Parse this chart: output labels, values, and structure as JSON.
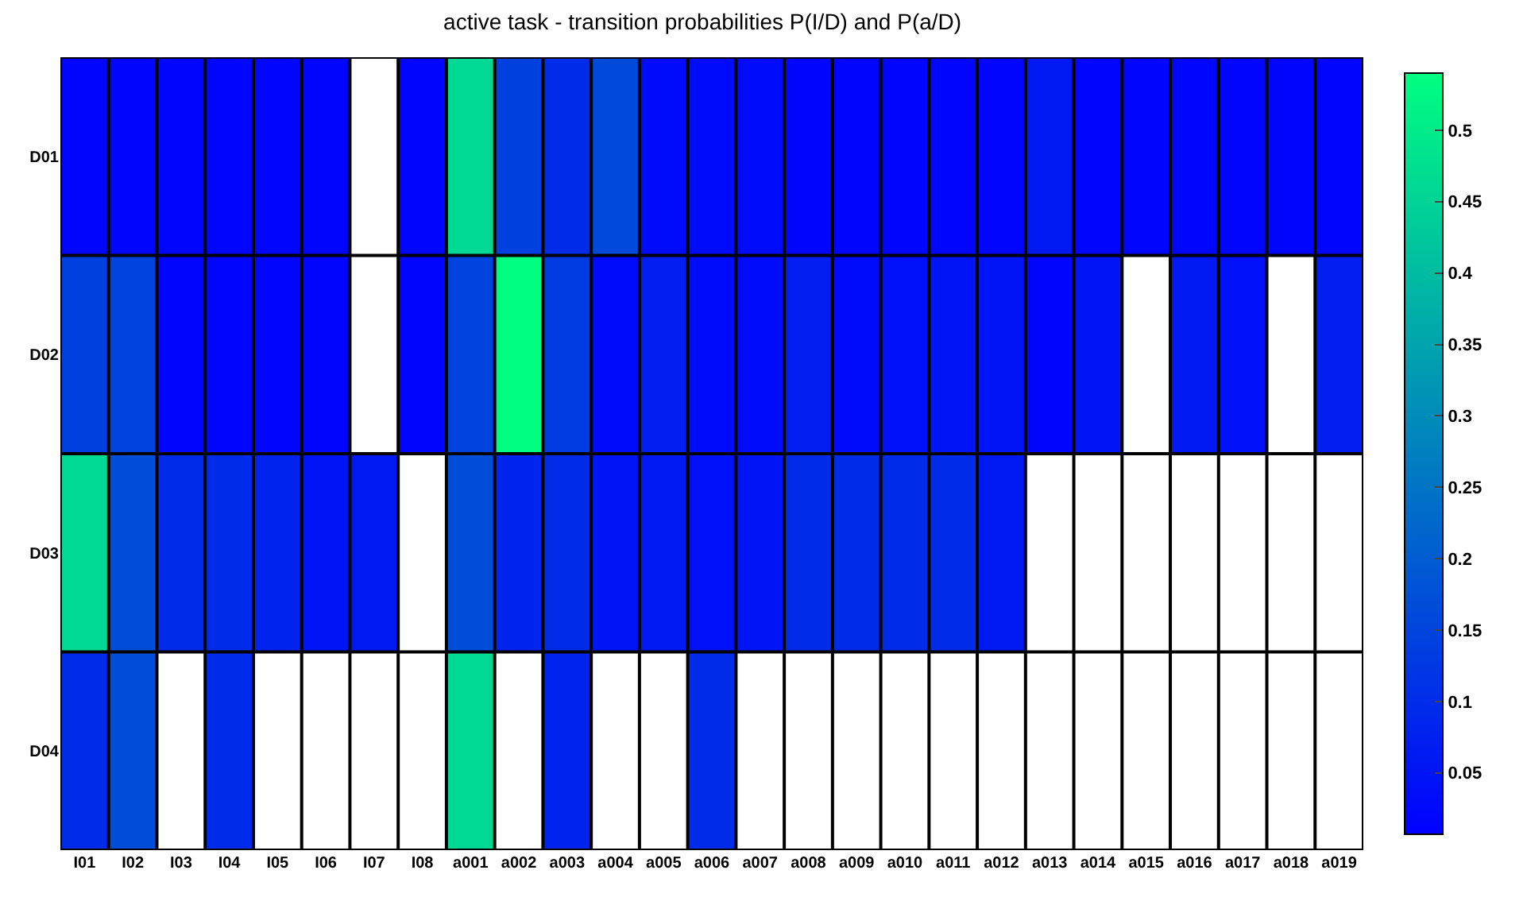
{
  "chart_data": {
    "type": "heatmap",
    "title": "active task - transition probabilities P(I/D) and P(a/D)",
    "categories": [
      "I01",
      "I02",
      "I03",
      "I04",
      "I05",
      "I06",
      "I07",
      "I08",
      "a001",
      "a002",
      "a003",
      "a004",
      "a005",
      "a006",
      "a007",
      "a008",
      "a009",
      "a010",
      "a011",
      "a012",
      "a013",
      "a014",
      "a015",
      "a016",
      "a017",
      "a018",
      "a019"
    ],
    "y_categories": [
      "D01",
      "D02",
      "D03",
      "D04"
    ],
    "cells": [
      [
        0.02,
        0.02,
        0.02,
        0.02,
        0.02,
        0.02,
        null,
        0.02,
        0.46,
        0.14,
        0.1,
        0.16,
        0.03,
        0.03,
        0.03,
        0.02,
        0.02,
        0.02,
        0.02,
        0.02,
        0.06,
        0.02,
        0.02,
        0.02,
        0.02,
        0.02,
        0.02
      ],
      [
        0.14,
        0.15,
        0.02,
        0.02,
        0.02,
        0.02,
        null,
        0.02,
        0.15,
        0.54,
        0.13,
        0.03,
        0.07,
        0.03,
        0.03,
        0.07,
        0.03,
        0.04,
        0.05,
        0.05,
        0.02,
        0.05,
        null,
        0.06,
        0.04,
        null,
        0.07
      ],
      [
        0.46,
        0.17,
        0.1,
        0.1,
        0.08,
        0.05,
        0.06,
        null,
        0.17,
        0.08,
        0.1,
        0.05,
        0.06,
        0.04,
        0.05,
        0.1,
        0.1,
        0.1,
        0.1,
        0.06,
        null,
        null,
        null,
        null,
        null,
        null,
        null
      ],
      [
        0.1,
        0.17,
        null,
        0.1,
        null,
        null,
        null,
        null,
        0.46,
        null,
        0.08,
        null,
        null,
        0.1,
        null,
        null,
        null,
        null,
        null,
        null,
        null,
        null,
        null,
        null,
        null,
        null,
        null
      ]
    ],
    "clim": [
      0.007,
      0.54
    ],
    "cticks": [
      0.05,
      0.1,
      0.15,
      0.2,
      0.25,
      0.3,
      0.35,
      0.4,
      0.45,
      0.5
    ],
    "colors": [
      "#0000ff",
      "#00ff80"
    ],
    "grid": true
  }
}
